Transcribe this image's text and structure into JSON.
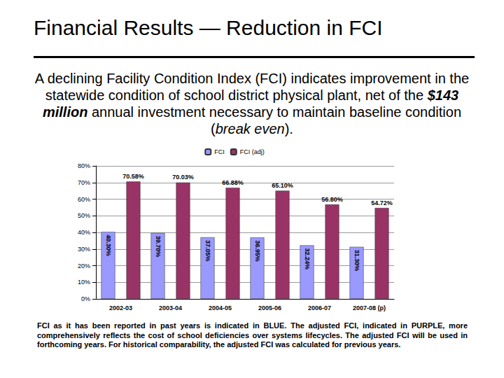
{
  "title": "Financial Results — Reduction in FCI",
  "intro": [
    {
      "text": "A declining Facility Condition Index (FCI) indicates improvement in the statewide condition of school district physical plant, net of the "
    },
    {
      "text": "$143 million",
      "style": "bold-italic"
    },
    {
      "text": " annual investment necessary to maintain baseline condition ("
    },
    {
      "text": "break even",
      "style": "italic"
    },
    {
      "text": ")."
    }
  ],
  "chart_data": {
    "type": "bar",
    "categories": [
      "2002-03",
      "2003-04",
      "2004-05",
      "2005-06",
      "2006-07",
      "2007-08 (p)"
    ],
    "series": [
      {
        "name": "FCI",
        "color": "#9999ff",
        "values": [
          40.3,
          39.7,
          37.05,
          36.95,
          32.24,
          31.3
        ],
        "value_labels": [
          "40.30%",
          "39.70%",
          "37.05%",
          "36.95%",
          "32.24%",
          "31.30%"
        ]
      },
      {
        "name": "FCI (adj)",
        "color": "#993366",
        "values": [
          70.58,
          70.03,
          66.88,
          65.1,
          56.8,
          54.72
        ],
        "value_labels": [
          "70.58%",
          "70.03%",
          "66.88%",
          "65.10%",
          "56.80%",
          "54.72%"
        ]
      }
    ],
    "ylim": [
      0,
      80
    ],
    "yticks": [
      {
        "value": 0,
        "label": "0%"
      },
      {
        "value": 10,
        "label": "10%"
      },
      {
        "value": 20,
        "label": "20%"
      },
      {
        "value": 30,
        "label": "30%"
      },
      {
        "value": 40,
        "label": "40%"
      },
      {
        "value": 50,
        "label": "50%"
      },
      {
        "value": 60,
        "label": "60%"
      },
      {
        "value": 70,
        "label": "70%"
      },
      {
        "value": 80,
        "label": "80%"
      }
    ],
    "grid": true,
    "legend": "top",
    "data_labels": true
  },
  "note": "FCI as it has been reported in past years is indicated in BLUE. The adjusted FCI, indicated in PURPLE, more comprehensively reflects the cost of school deficiencies over systems lifecycles. The adjusted FCI will be used in forthcoming years. For historical comparability, the adjusted FCI was calculated for previous years."
}
